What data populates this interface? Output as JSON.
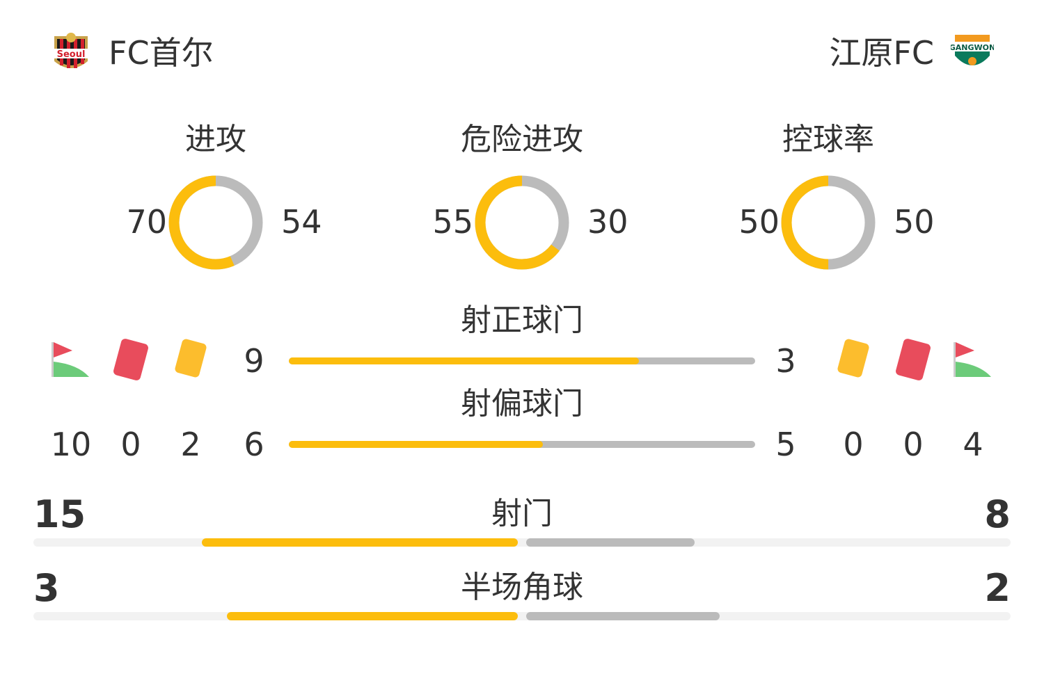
{
  "home": {
    "name": "FC首尔",
    "logo": "fc-seoul-logo",
    "logo_text": "Seoul"
  },
  "away": {
    "name": "江原FC",
    "logo": "gangwon-fc-logo",
    "logo_text": "GANGWON"
  },
  "colors": {
    "home": "#fcbd0d",
    "away": "#bbbbbb",
    "red_card": "#e84c5c",
    "yellow_card": "#fcbd2d",
    "flag_green": "#6ccb7a"
  },
  "donuts": [
    {
      "label": "进攻",
      "home": 70,
      "away": 54
    },
    {
      "label": "危险进攻",
      "home": 55,
      "away": 30
    },
    {
      "label": "控球率",
      "home": 50,
      "away": 50
    }
  ],
  "bars": [
    {
      "label": "射正球门",
      "home": 9,
      "away": 3
    },
    {
      "label": "射偏球门",
      "home": 6,
      "away": 5
    }
  ],
  "home_counts": {
    "corners": 10,
    "red_cards": 0,
    "yellow_cards": 2
  },
  "away_counts": {
    "yellow_cards": 0,
    "red_cards": 0,
    "corners": 4
  },
  "wide_bars": [
    {
      "label": "射门",
      "home": 15,
      "away": 8
    },
    {
      "label": "半场角球",
      "home": 3,
      "away": 2
    }
  ]
}
